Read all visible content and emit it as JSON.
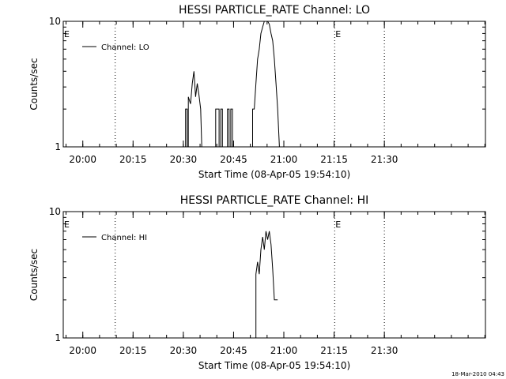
{
  "chart_data": [
    {
      "type": "line",
      "title": "HESSI PARTICLE_RATE Channel: LO",
      "xlabel": "Start Time (08-Apr-05 19:54:10)",
      "ylabel": "Counts/sec",
      "yscale": "log",
      "ylim": [
        1,
        10
      ],
      "y_ticks": [
        "1",
        "10"
      ],
      "xlim": [
        "19:54:10",
        "22:00:10"
      ],
      "x_ticks": [
        "20:00",
        "20:15",
        "20:30",
        "20:45",
        "21:00",
        "21:15",
        "21:30"
      ],
      "grid": false,
      "legend_position": "top-left",
      "event_markers": [
        {
          "time": "20:09:40",
          "label": ""
        },
        {
          "time": "21:15:10",
          "label": "E"
        },
        {
          "time": "21:30:00",
          "label": ""
        }
      ],
      "left_marker_label": "E",
      "series": [
        {
          "name": "Channel: LO",
          "points": [
            [
              "20:30:40",
              1
            ],
            [
              "20:30:40",
              2
            ],
            [
              "20:31:10",
              2
            ],
            [
              "20:31:10",
              1
            ],
            [
              "20:31:30",
              1
            ],
            [
              "20:31:30",
              2.5
            ],
            [
              "20:32:10",
              2.2
            ],
            [
              "20:32:40",
              3.2
            ],
            [
              "20:33:10",
              4
            ],
            [
              "20:33:40",
              2.5
            ],
            [
              "20:34:10",
              3.2
            ],
            [
              "20:34:40",
              2.6
            ],
            [
              "20:35:10",
              2
            ],
            [
              "20:35:30",
              1
            ],
            [
              "20:39:40",
              1
            ],
            [
              "20:39:40",
              2
            ],
            [
              "20:40:40",
              2
            ],
            [
              "20:40:40",
              1
            ],
            [
              "20:41:10",
              1
            ],
            [
              "20:41:10",
              2
            ],
            [
              "20:41:40",
              2
            ],
            [
              "20:41:40",
              1
            ],
            [
              "20:43:10",
              1
            ],
            [
              "20:43:10",
              2
            ],
            [
              "20:43:40",
              2
            ],
            [
              "20:43:40",
              1
            ],
            [
              "20:44:10",
              1
            ],
            [
              "20:44:10",
              2
            ],
            [
              "20:44:40",
              2
            ],
            [
              "20:44:40",
              1
            ],
            [
              "20:50:40",
              1
            ],
            [
              "20:50:40",
              2
            ],
            [
              "20:51:10",
              2
            ],
            [
              "20:51:40",
              3.2
            ],
            [
              "20:52:10",
              5
            ],
            [
              "20:52:40",
              6
            ],
            [
              "20:53:10",
              8
            ],
            [
              "20:53:40",
              9
            ],
            [
              "20:54:10",
              10
            ],
            [
              "20:54:40",
              10
            ],
            [
              "20:55:10",
              10
            ],
            [
              "20:55:40",
              9.5
            ],
            [
              "20:56:10",
              8
            ],
            [
              "20:56:40",
              7
            ],
            [
              "20:57:10",
              5
            ],
            [
              "20:57:40",
              3.2
            ],
            [
              "20:58:10",
              2
            ],
            [
              "20:58:40",
              1
            ]
          ]
        }
      ]
    },
    {
      "type": "line",
      "title": "HESSI PARTICLE_RATE Channel: HI",
      "xlabel": "Start Time (08-Apr-05 19:54:10)",
      "ylabel": "Counts/sec",
      "yscale": "log",
      "ylim": [
        1,
        10
      ],
      "y_ticks": [
        "1",
        "10"
      ],
      "xlim": [
        "19:54:10",
        "22:00:10"
      ],
      "x_ticks": [
        "20:00",
        "20:15",
        "20:30",
        "20:45",
        "21:00",
        "21:15",
        "21:30"
      ],
      "grid": false,
      "legend_position": "top-left",
      "event_markers": [
        {
          "time": "20:09:40",
          "label": ""
        },
        {
          "time": "21:15:10",
          "label": "E"
        },
        {
          "time": "21:30:00",
          "label": ""
        }
      ],
      "left_marker_label": "E",
      "series": [
        {
          "name": "Channel: HI",
          "points": [
            [
              "20:51:40",
              1
            ],
            [
              "20:51:40",
              3.2
            ],
            [
              "20:52:10",
              4
            ],
            [
              "20:52:40",
              3.2
            ],
            [
              "20:53:10",
              5
            ],
            [
              "20:53:40",
              6.3
            ],
            [
              "20:54:10",
              5
            ],
            [
              "20:54:40",
              7
            ],
            [
              "20:55:10",
              6
            ],
            [
              "20:55:40",
              7
            ],
            [
              "20:56:10",
              5.5
            ],
            [
              "20:56:40",
              3.5
            ],
            [
              "20:57:10",
              2
            ],
            [
              "20:58:10",
              2
            ]
          ]
        }
      ]
    }
  ],
  "footer": {
    "stamp": "18-Mar-2010 04:43"
  }
}
